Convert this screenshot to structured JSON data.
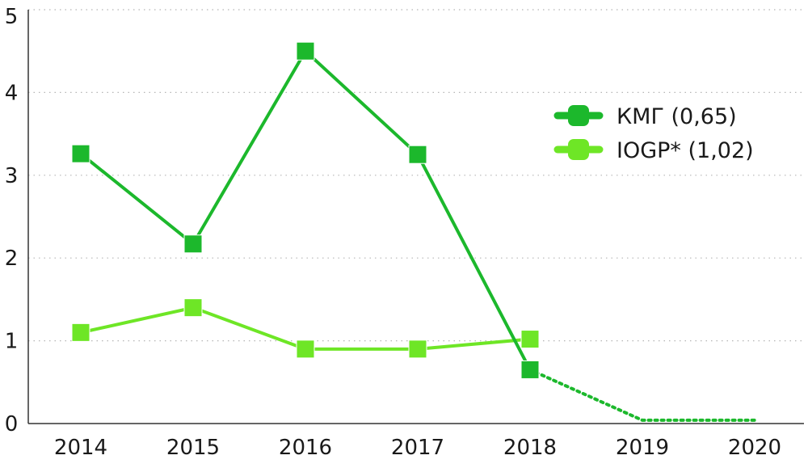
{
  "chart_data": {
    "type": "line",
    "title": "",
    "xlabel": "",
    "ylabel": "",
    "x": [
      "2014",
      "2015",
      "2016",
      "2017",
      "2018",
      "2019",
      "2020"
    ],
    "ylim": [
      0,
      5
    ],
    "yticks": [
      "0",
      "1",
      "2",
      "3",
      "4",
      "5"
    ],
    "grid": "horizontal dotted",
    "legend_placement": "right",
    "series": [
      {
        "name": "КМГ (0,65)",
        "color": "#1cb82c",
        "values": [
          3.26,
          2.17,
          4.5,
          3.25,
          0.65,
          null,
          null
        ],
        "projection": {
          "x": [
            "2018",
            "2019",
            "2020"
          ],
          "values": [
            0.65,
            0.04,
            0.04
          ],
          "style": "dotted"
        }
      },
      {
        "name": "IOGP* (1,02)",
        "color": "#6ee626",
        "values": [
          1.1,
          1.4,
          0.9,
          0.9,
          1.02,
          null,
          null
        ]
      }
    ]
  }
}
